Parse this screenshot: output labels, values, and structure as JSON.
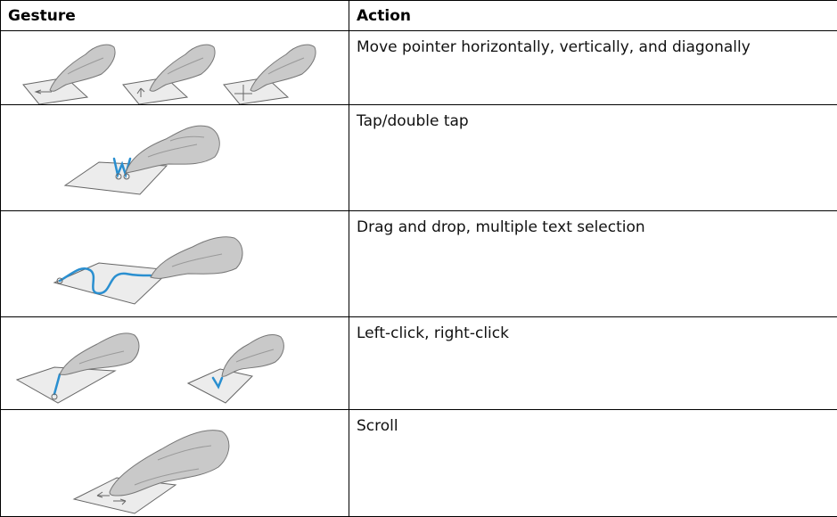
{
  "table": {
    "header": [
      "Gesture",
      "Action"
    ],
    "rows": [
      "Move pointer horizontally, vertically, and diagonally",
      "Tap/double tap",
      "Drag and drop, multiple text selection",
      "Left-click, right-click",
      "Scroll"
    ]
  }
}
